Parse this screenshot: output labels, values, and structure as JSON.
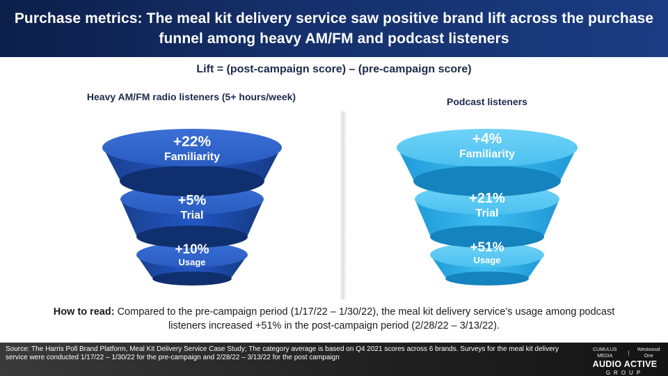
{
  "header": {
    "title": "Purchase metrics: The meal kit delivery service saw positive brand lift across the purchase funnel among heavy AM/FM and podcast listeners"
  },
  "lift_definition": "Lift = (post-campaign score) – (pre-campaign score)",
  "segments": [
    {
      "title": "Heavy AM/FM radio listeners (5+ hours/week)",
      "stages": [
        {
          "value": "+22%",
          "label": "Familiarity"
        },
        {
          "value": "+5%",
          "label": "Trial"
        },
        {
          "value": "+10%",
          "label": "Usage"
        }
      ]
    },
    {
      "title": "Podcast listeners",
      "stages": [
        {
          "value": "+4%",
          "label": "Familiarity"
        },
        {
          "value": "+21%",
          "label": "Trial"
        },
        {
          "value": "+51%",
          "label": "Usage"
        }
      ]
    }
  ],
  "how_to_read": {
    "lead": "How to read:",
    "text": " Compared to the pre-campaign period (1/17/22 – 1/30/22), the meal kit delivery service’s usage among podcast listeners increased +51% in the post-campaign period (2/28/22 – 3/13/22)."
  },
  "footer": {
    "source": "Source: The Harris Poll Brand Platform, Meal Kit Delivery Service Case Study; The category average is based on Q4 2021 scores across 6 brands. Surveys for the meal kit delivery service were conducted 1/17/22 – 1/30/22 for the pre-campaign and 2/28/22 – 3/13/22 for the post campaign",
    "logo_top_left": "CUMULUS MEDIA",
    "logo_top_right": "Westwood One",
    "logo_main": "AUDIO ACTIVE",
    "logo_sub": "GROUP"
  },
  "colors": {
    "header_bg": "#15306b",
    "am_fm_funnel": "#1d4fb0",
    "podcast_funnel": "#2aaae6"
  }
}
